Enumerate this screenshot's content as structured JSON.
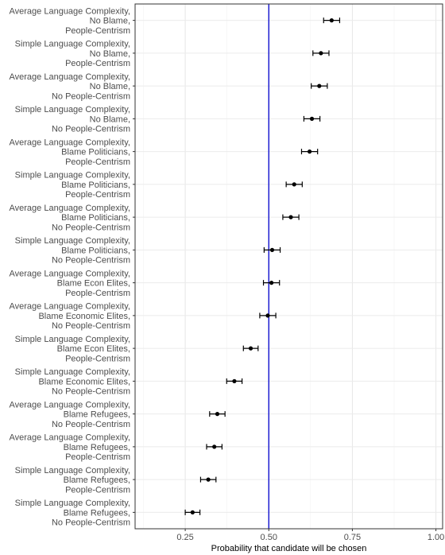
{
  "chart_data": {
    "type": "scatter",
    "subtype": "point-range",
    "title": "",
    "xlabel": "Probability that candidate will be chosen",
    "ylabel": "",
    "xlim": [
      0.1,
      1.02
    ],
    "xticks": [
      0.25,
      0.5,
      0.75,
      1.0
    ],
    "xtick_labels": [
      "0.25",
      "0.50",
      "0.75",
      "1.00"
    ],
    "reference_line": {
      "x": 0.5,
      "color": "#0000cc"
    },
    "grid": true,
    "theme": "bw",
    "categories": [
      [
        "Average Language Complexity,",
        "No Blame,",
        "People-Centrism"
      ],
      [
        "Simple Language Complexity,",
        "No Blame,",
        "People-Centrism"
      ],
      [
        "Average Language Complexity,",
        "No Blame,",
        "No People-Centrism"
      ],
      [
        "Simple Language Complexity,",
        "No Blame,",
        "No People-Centrism"
      ],
      [
        "Average Language Complexity,",
        "Blame Politicians,",
        "People-Centrism"
      ],
      [
        "Simple Language Complexity,",
        "Blame Politicians,",
        "People-Centrism"
      ],
      [
        "Average Language Complexity,",
        "Blame Politicians,",
        "No People-Centrism"
      ],
      [
        "Simple Language Complexity,",
        "Blame Politicians,",
        "No People-Centrism"
      ],
      [
        "Average Language Complexity,",
        "Blame Econ Elites,",
        "People-Centrism"
      ],
      [
        "Average Language Complexity,",
        "Blame Economic Elites,",
        "No People-Centrism"
      ],
      [
        "Simple Language Complexity,",
        "Blame Econ Elites,",
        "People-Centrism"
      ],
      [
        "Simple Language Complexity,",
        "Blame Economic Elites,",
        "No People-Centrism"
      ],
      [
        "Average Language Complexity,",
        "Blame Refugees,",
        "No People-Centrism"
      ],
      [
        "Average Language Complexity,",
        "Blame Refugees,",
        "People-Centrism"
      ],
      [
        "Simple Language Complexity,",
        "Blame Refugees,",
        "People-Centrism"
      ],
      [
        "Simple Language Complexity,",
        "Blame Refugees,",
        "No People-Centrism"
      ]
    ],
    "values": [
      0.688,
      0.656,
      0.651,
      0.629,
      0.622,
      0.576,
      0.566,
      0.51,
      0.508,
      0.497,
      0.446,
      0.397,
      0.346,
      0.337,
      0.319,
      0.272
    ],
    "ci_lower": [
      0.664,
      0.632,
      0.627,
      0.605,
      0.598,
      0.552,
      0.542,
      0.486,
      0.484,
      0.473,
      0.424,
      0.374,
      0.323,
      0.314,
      0.296,
      0.25
    ],
    "ci_upper": [
      0.712,
      0.68,
      0.675,
      0.653,
      0.646,
      0.6,
      0.59,
      0.534,
      0.532,
      0.521,
      0.468,
      0.42,
      0.369,
      0.36,
      0.342,
      0.294
    ]
  }
}
